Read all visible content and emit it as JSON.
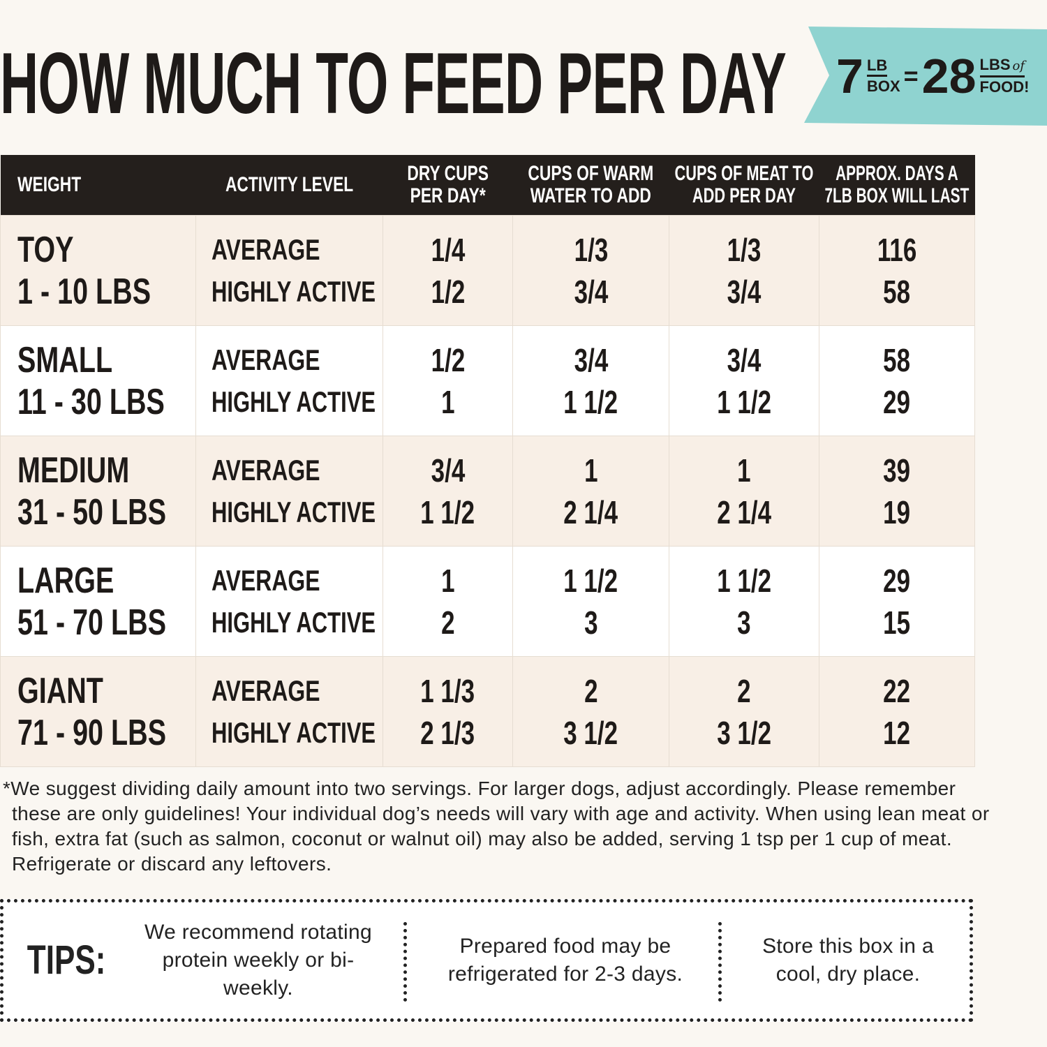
{
  "title": "HOW MUCH TO FEED PER DAY",
  "badge": {
    "num1": "7",
    "unit1_top": "LB",
    "unit1_bottom": "BOX",
    "equals": "=",
    "num2": "28",
    "unit2_top": "LBS",
    "unit2_script": "of",
    "unit2_bottom": "FOOD!",
    "color": "#8fd3d0"
  },
  "table": {
    "headers": [
      "WEIGHT",
      "ACTIVITY LEVEL",
      "DRY CUPS\nPER DAY*",
      "CUPS OF WARM\nWATER TO ADD",
      "CUPS OF MEAT TO\nADD PER DAY",
      "APPROX. DAYS A\n7LB BOX WILL LAST"
    ],
    "rows": [
      {
        "size": "TOY",
        "range": "1 - 10 LBS",
        "levels": [
          "AVERAGE",
          "HIGHLY ACTIVE"
        ],
        "dry": [
          "1/4",
          "1/2"
        ],
        "water": [
          "1/3",
          "3/4"
        ],
        "meat": [
          "1/3",
          "3/4"
        ],
        "days": [
          "116",
          "58"
        ]
      },
      {
        "size": "SMALL",
        "range": "11 - 30 LBS",
        "levels": [
          "AVERAGE",
          "HIGHLY ACTIVE"
        ],
        "dry": [
          "1/2",
          "1"
        ],
        "water": [
          "3/4",
          "1 1/2"
        ],
        "meat": [
          "3/4",
          "1 1/2"
        ],
        "days": [
          "58",
          "29"
        ]
      },
      {
        "size": "MEDIUM",
        "range": "31 - 50 LBS",
        "levels": [
          "AVERAGE",
          "HIGHLY ACTIVE"
        ],
        "dry": [
          "3/4",
          "1 1/2"
        ],
        "water": [
          "1",
          "2 1/4"
        ],
        "meat": [
          "1",
          "2 1/4"
        ],
        "days": [
          "39",
          "19"
        ]
      },
      {
        "size": "LARGE",
        "range": "51 - 70 LBS",
        "levels": [
          "AVERAGE",
          "HIGHLY ACTIVE"
        ],
        "dry": [
          "1",
          "2"
        ],
        "water": [
          "1 1/2",
          "3"
        ],
        "meat": [
          "1 1/2",
          "3"
        ],
        "days": [
          "29",
          "15"
        ]
      },
      {
        "size": "GIANT",
        "range": "71 - 90 LBS",
        "levels": [
          "AVERAGE",
          "HIGHLY ACTIVE"
        ],
        "dry": [
          "1 1/3",
          "2 1/3"
        ],
        "water": [
          "2",
          "3 1/2"
        ],
        "meat": [
          "2",
          "3 1/2"
        ],
        "days": [
          "22",
          "12"
        ]
      }
    ]
  },
  "footnote": "*We suggest dividing daily amount into two servings. For larger dogs, adjust accordingly. Please remember these are only guidelines! Your individual dog’s needs will vary with age and activity. When using lean meat or fish, extra fat (such as salmon, coconut or walnut oil) may also be added, serving 1 tsp per 1 cup of meat. Refrigerate or discard any leftovers.",
  "tips": {
    "label": "TIPS:",
    "items": [
      "We recommend rotating protein weekly or bi-weekly.",
      "Prepared food may be refrigerated for 2-3 days.",
      "Store this box in a cool, dry place."
    ]
  }
}
